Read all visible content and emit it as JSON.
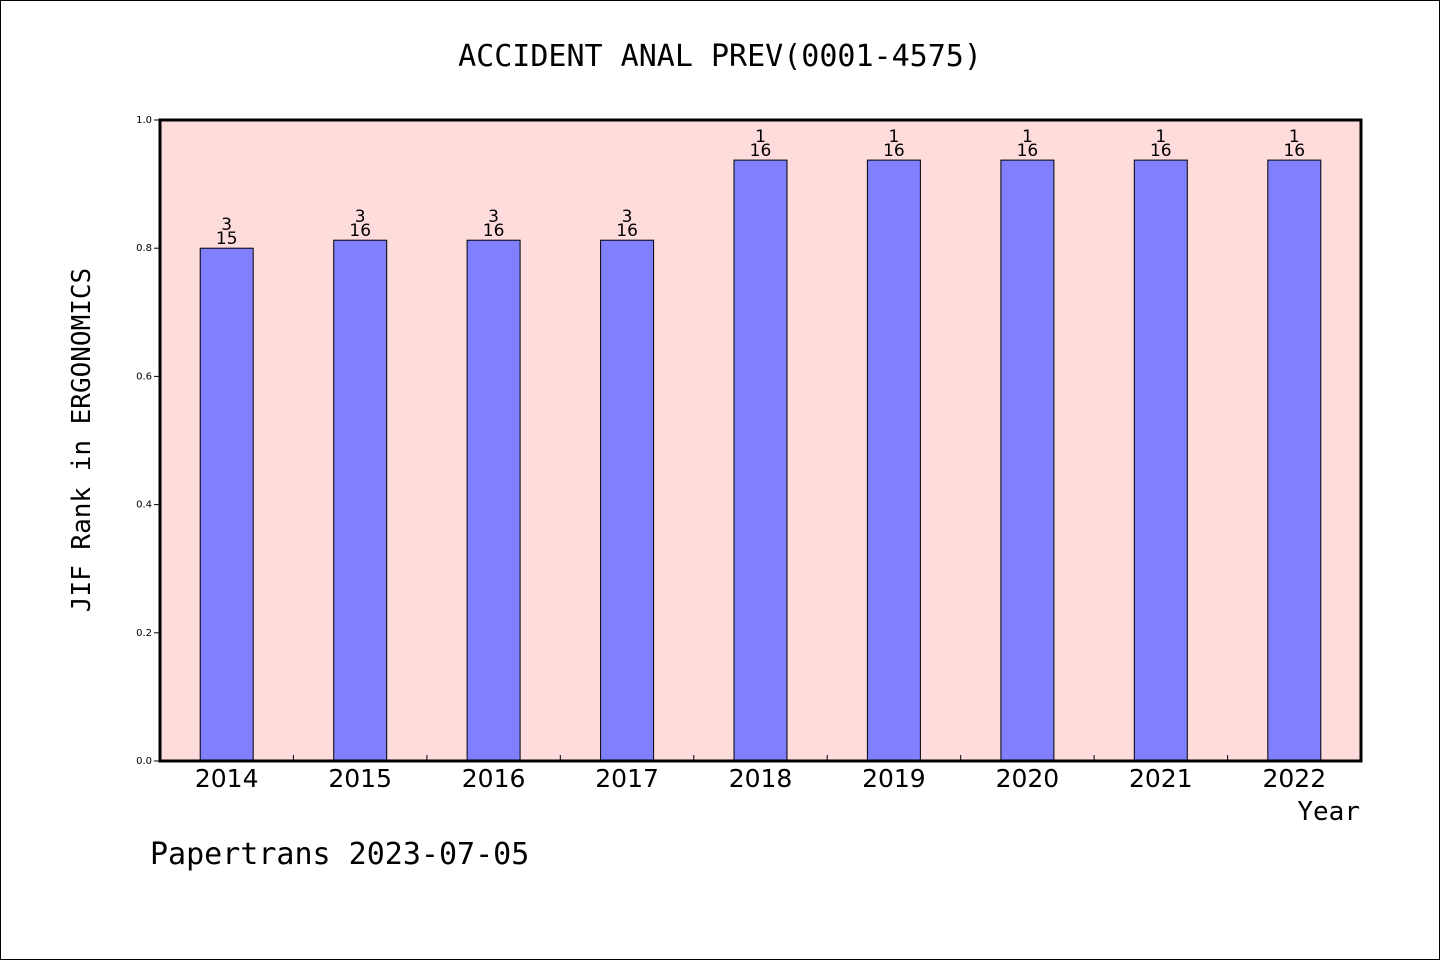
{
  "chart_data": {
    "type": "bar",
    "title": "ACCIDENT ANAL PREV(0001-4575)",
    "xlabel": "Year",
    "ylabel": "JIF Rank in ERGONOMICS",
    "categories": [
      "2014",
      "2015",
      "2016",
      "2017",
      "2018",
      "2019",
      "2020",
      "2021",
      "2022"
    ],
    "values": [
      0.8,
      0.8125,
      0.8125,
      0.8125,
      0.9375,
      0.9375,
      0.9375,
      0.9375,
      0.9375
    ],
    "rank": [
      "3",
      "3",
      "3",
      "3",
      "1",
      "1",
      "1",
      "1",
      "1"
    ],
    "total": [
      "15",
      "16",
      "16",
      "16",
      "16",
      "16",
      "16",
      "16",
      "16"
    ],
    "ylim": [
      0,
      1.0
    ],
    "yticks": [
      "0.0",
      "0.2",
      "0.4",
      "0.6",
      "0.8",
      "1.0"
    ],
    "grid": false,
    "colors": {
      "bar": "#8080ff",
      "plot_background": "#ffdcdc"
    }
  },
  "footer": "Papertrans 2023-07-05"
}
